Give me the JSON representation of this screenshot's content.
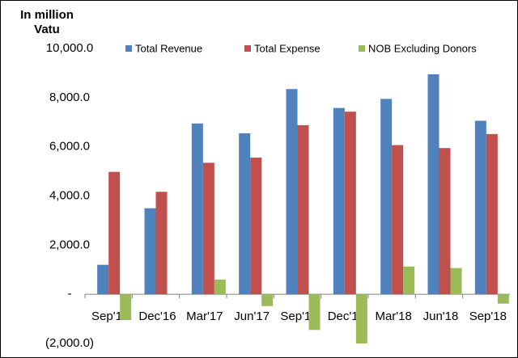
{
  "chart_data": {
    "type": "bar",
    "y_label": "In million Vatu",
    "categories": [
      "Sep'16",
      "Dec'16",
      "Mar'17",
      "Jun'17",
      "Sep'17",
      "Dec'17",
      "Mar'18",
      "Jun'18",
      "Sep'18"
    ],
    "series": [
      {
        "name": "Total Revenue",
        "color": "#4f81bd",
        "values": [
          1200,
          3500,
          6950,
          6550,
          8350,
          7580,
          7950,
          8950,
          7060
        ]
      },
      {
        "name": "Total Expense",
        "color": "#c0504d",
        "values": [
          4980,
          4170,
          5350,
          5560,
          6880,
          7430,
          6070,
          5950,
          6520
        ]
      },
      {
        "name": "NOB Excluding Donors",
        "color": "#9bbb59",
        "values": [
          -1050,
          0,
          600,
          -480,
          -1450,
          -2000,
          1130,
          1070,
          -380
        ]
      }
    ],
    "ylim": [
      -2000,
      10000
    ],
    "yticks": [
      {
        "value": -2000,
        "label": "(2,000.0)"
      },
      {
        "value": 0,
        "label": "-"
      },
      {
        "value": 2000,
        "label": "2,000.0"
      },
      {
        "value": 4000,
        "label": "4,000.0"
      },
      {
        "value": 6000,
        "label": "6,000.0"
      },
      {
        "value": 8000,
        "label": "8,000.0"
      },
      {
        "value": 10000,
        "label": "10,000.0"
      }
    ],
    "legend": "top"
  }
}
